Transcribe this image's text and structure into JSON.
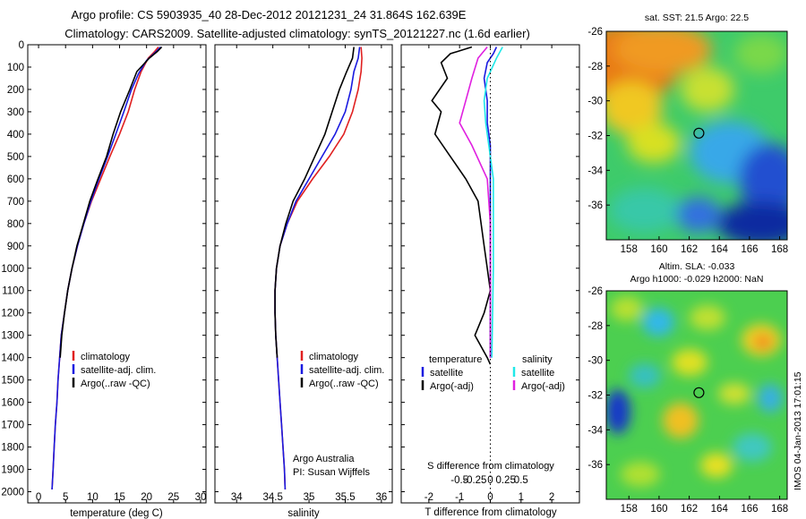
{
  "header": {
    "line1": "Argo profile: CS 5903935_40 28-Dec-2012 20121231_24 31.864S 162.639E",
    "line2": "Climatology: CARS2009. Satellite-adjusted climatology: synTS_20121227.nc (1.6d earlier)"
  },
  "colors": {
    "climatology": "#e02020",
    "satellite": "#1a1ae0",
    "argo": "#000000",
    "satellite_s": "#20e8e8",
    "argo_s": "#e020e0"
  },
  "depth_ticks": [
    0,
    100,
    200,
    300,
    400,
    500,
    600,
    700,
    800,
    900,
    1000,
    1100,
    1200,
    1300,
    1400,
    1500,
    1600,
    1700,
    1800,
    1900,
    2000
  ],
  "chart_data": [
    {
      "id": "temperature",
      "type": "line",
      "xlabel": "temperature (deg C)",
      "xlim": [
        -2,
        31
      ],
      "ylim": [
        0,
        2050
      ],
      "x_ticks": [
        0,
        5,
        10,
        15,
        20,
        25,
        30
      ],
      "legend": [
        "climatology",
        "satellite-adj. clim.",
        "Argo(..raw -QC)"
      ],
      "legend_placement": "lower-middle",
      "series": [
        {
          "name": "climatology",
          "color_key": "climatology",
          "points": [
            [
              22.2,
              10
            ],
            [
              21.5,
              30
            ],
            [
              20.3,
              60
            ],
            [
              19.0,
              120
            ],
            [
              17.8,
              200
            ],
            [
              16.6,
              300
            ],
            [
              15.0,
              400
            ],
            [
              13.2,
              500
            ],
            [
              11.5,
              600
            ],
            [
              9.8,
              700
            ],
            [
              8.4,
              800
            ],
            [
              7.2,
              900
            ],
            [
              6.2,
              1000
            ],
            [
              5.4,
              1100
            ],
            [
              4.8,
              1200
            ],
            [
              4.2,
              1300
            ],
            [
              3.9,
              1400
            ],
            [
              3.6,
              1500
            ],
            [
              3.4,
              1600
            ],
            [
              3.1,
              1700
            ],
            [
              2.9,
              1800
            ],
            [
              2.7,
              1900
            ],
            [
              2.5,
              1990
            ]
          ]
        },
        {
          "name": "satellite-adj. clim.",
          "color_key": "satellite",
          "points": [
            [
              22.6,
              10
            ],
            [
              21.8,
              30
            ],
            [
              20.0,
              70
            ],
            [
              18.5,
              130
            ],
            [
              17.2,
              200
            ],
            [
              15.8,
              300
            ],
            [
              14.3,
              400
            ],
            [
              12.8,
              500
            ],
            [
              11.2,
              600
            ],
            [
              9.7,
              700
            ],
            [
              8.4,
              800
            ],
            [
              7.2,
              900
            ],
            [
              6.2,
              1000
            ],
            [
              5.4,
              1100
            ],
            [
              4.8,
              1200
            ],
            [
              4.2,
              1300
            ],
            [
              3.9,
              1400
            ],
            [
              3.6,
              1500
            ],
            [
              3.4,
              1600
            ],
            [
              3.1,
              1700
            ],
            [
              2.9,
              1800
            ],
            [
              2.7,
              1900
            ],
            [
              2.5,
              1990
            ]
          ]
        },
        {
          "name": "Argo(..raw -QC)",
          "color_key": "argo",
          "points": [
            [
              22.8,
              10
            ],
            [
              22.0,
              30
            ],
            [
              20.5,
              60
            ],
            [
              18.2,
              120
            ],
            [
              16.9,
              200
            ],
            [
              15.2,
              300
            ],
            [
              13.8,
              400
            ],
            [
              12.6,
              500
            ],
            [
              11.0,
              600
            ],
            [
              9.5,
              700
            ],
            [
              8.3,
              800
            ],
            [
              7.1,
              900
            ],
            [
              6.2,
              1000
            ],
            [
              5.4,
              1100
            ],
            [
              4.8,
              1200
            ],
            [
              4.3,
              1300
            ],
            [
              4.0,
              1400
            ]
          ]
        }
      ]
    },
    {
      "id": "salinity",
      "type": "line",
      "xlabel": "salinity",
      "xlim": [
        33.7,
        36.15
      ],
      "ylim": [
        0,
        2050
      ],
      "x_ticks": [
        34,
        34.5,
        35,
        35.5,
        36
      ],
      "x_tick_labels": [
        "34",
        "34.5",
        "35",
        "35.5",
        "36"
      ],
      "legend": [
        "climatology",
        "satellite-adj. clim.",
        "Argo(..raw -QC)"
      ],
      "legend_placement": "lower-middle",
      "annotation": [
        "Argo Australia",
        "PI: Susan Wijffels"
      ],
      "series": [
        {
          "name": "climatology",
          "color_key": "climatology",
          "points": [
            [
              35.72,
              10
            ],
            [
              35.73,
              60
            ],
            [
              35.72,
              120
            ],
            [
              35.68,
              200
            ],
            [
              35.6,
              300
            ],
            [
              35.48,
              400
            ],
            [
              35.28,
              500
            ],
            [
              35.05,
              600
            ],
            [
              34.84,
              700
            ],
            [
              34.7,
              800
            ],
            [
              34.6,
              900
            ],
            [
              34.55,
              1000
            ],
            [
              34.53,
              1100
            ],
            [
              34.53,
              1200
            ],
            [
              34.54,
              1300
            ],
            [
              34.56,
              1400
            ],
            [
              34.58,
              1500
            ],
            [
              34.6,
              1600
            ],
            [
              34.62,
              1700
            ],
            [
              34.64,
              1800
            ],
            [
              34.66,
              1900
            ],
            [
              34.67,
              1990
            ]
          ]
        },
        {
          "name": "satellite-adj. clim.",
          "color_key": "satellite",
          "points": [
            [
              35.7,
              10
            ],
            [
              35.68,
              60
            ],
            [
              35.62,
              120
            ],
            [
              35.58,
              200
            ],
            [
              35.5,
              300
            ],
            [
              35.36,
              400
            ],
            [
              35.18,
              500
            ],
            [
              35.0,
              600
            ],
            [
              34.82,
              700
            ],
            [
              34.7,
              800
            ],
            [
              34.6,
              900
            ],
            [
              34.55,
              1000
            ],
            [
              34.53,
              1100
            ],
            [
              34.53,
              1200
            ],
            [
              34.54,
              1300
            ],
            [
              34.56,
              1400
            ],
            [
              34.58,
              1500
            ],
            [
              34.6,
              1600
            ],
            [
              34.62,
              1700
            ],
            [
              34.64,
              1800
            ],
            [
              34.66,
              1900
            ],
            [
              34.67,
              1990
            ]
          ]
        },
        {
          "name": "Argo(..raw -QC)",
          "color_key": "argo",
          "points": [
            [
              35.62,
              10
            ],
            [
              35.6,
              60
            ],
            [
              35.52,
              120
            ],
            [
              35.42,
              200
            ],
            [
              35.32,
              300
            ],
            [
              35.22,
              400
            ],
            [
              35.08,
              500
            ],
            [
              34.94,
              600
            ],
            [
              34.78,
              700
            ],
            [
              34.68,
              800
            ],
            [
              34.6,
              900
            ],
            [
              34.55,
              1000
            ],
            [
              34.53,
              1100
            ],
            [
              34.53,
              1200
            ],
            [
              34.54,
              1300
            ],
            [
              34.56,
              1400
            ]
          ]
        }
      ]
    },
    {
      "id": "difference",
      "type": "line",
      "xlabel": "T difference from climatology",
      "xlabel_top": "S difference from climatology",
      "xlim": [
        -2.9,
        2.9
      ],
      "ylim": [
        0,
        2050
      ],
      "x_ticks": [
        -2,
        -1,
        0,
        1,
        2
      ],
      "s_ticks": [
        -0.5,
        -0.25,
        0,
        0.25,
        0.5
      ],
      "s_tick_labels": [
        "-0.5",
        "-0.25",
        "0",
        "0.25",
        "0.5"
      ],
      "legend_t": [
        "temperature",
        "satellite",
        "Argo(-adj)"
      ],
      "legend_s": [
        "salinity",
        "satellite",
        "Argo(-adj)"
      ],
      "series": [
        {
          "name": "satellite",
          "color_key": "satellite",
          "points": [
            [
              0.2,
              10
            ],
            [
              0.1,
              40
            ],
            [
              -0.1,
              80
            ],
            [
              -0.2,
              150
            ],
            [
              -0.1,
              250
            ],
            [
              -0.1,
              350
            ],
            [
              0.0,
              450
            ],
            [
              0.0,
              600
            ],
            [
              0.0,
              800
            ],
            [
              0.0,
              1000
            ],
            [
              0.0,
              1400
            ]
          ]
        },
        {
          "name": "Argo(-adj)",
          "color_key": "argo",
          "points": [
            [
              -0.6,
              10
            ],
            [
              -1.3,
              40
            ],
            [
              -1.6,
              80
            ],
            [
              -1.4,
              150
            ],
            [
              -1.9,
              250
            ],
            [
              -1.6,
              300
            ],
            [
              -1.8,
              400
            ],
            [
              -1.3,
              500
            ],
            [
              -0.8,
              600
            ],
            [
              -0.4,
              700
            ],
            [
              -0.3,
              800
            ],
            [
              -0.2,
              900
            ],
            [
              -0.1,
              1000
            ],
            [
              0.0,
              1100
            ],
            [
              -0.2,
              1200
            ],
            [
              -0.5,
              1300
            ],
            [
              -0.1,
              1400
            ],
            [
              0.0,
              1430
            ]
          ]
        },
        {
          "name": "satellite",
          "color_key": "satellite_s",
          "points": [
            [
              0.4,
              10
            ],
            [
              0.2,
              60
            ],
            [
              -0.1,
              150
            ],
            [
              -0.2,
              250
            ],
            [
              -0.15,
              350
            ],
            [
              -0.05,
              450
            ],
            [
              0.1,
              600
            ],
            [
              0.1,
              800
            ],
            [
              0.1,
              1000
            ],
            [
              0.05,
              1400
            ]
          ]
        },
        {
          "name": "Argo(-adj)",
          "color_key": "argo_s",
          "points": [
            [
              -0.1,
              10
            ],
            [
              -0.4,
              60
            ],
            [
              -0.6,
              150
            ],
            [
              -0.8,
              250
            ],
            [
              -1.0,
              350
            ],
            [
              -0.6,
              450
            ],
            [
              -0.1,
              600
            ],
            [
              0.0,
              800
            ],
            [
              0.0,
              1000
            ],
            [
              0.0,
              1400
            ]
          ]
        }
      ]
    },
    {
      "id": "sst_map",
      "type": "heatmap",
      "title": "sat. SST: 21.5 Argo: 22.5",
      "xlim": [
        156.5,
        168.5
      ],
      "ylim": [
        -38,
        -26
      ],
      "x_ticks": [
        158,
        160,
        162,
        164,
        166,
        168
      ],
      "y_ticks": [
        -26,
        -28,
        -30,
        -32,
        -34,
        -36
      ],
      "argo_location": [
        162.64,
        -31.86
      ]
    },
    {
      "id": "sla_map",
      "type": "heatmap",
      "title": "Altim. SLA: -0.033",
      "subtitle": "Argo h1000: -0.029 h2000: NaN",
      "xlim": [
        156.5,
        168.5
      ],
      "ylim": [
        -38,
        -26
      ],
      "x_ticks": [
        158,
        160,
        162,
        164,
        166,
        168
      ],
      "y_ticks": [
        -26,
        -28,
        -30,
        -32,
        -34,
        -36
      ],
      "argo_location": [
        162.64,
        -31.86
      ]
    }
  ],
  "side_label": "IMOS 04-Jan-2013 17:01:15"
}
